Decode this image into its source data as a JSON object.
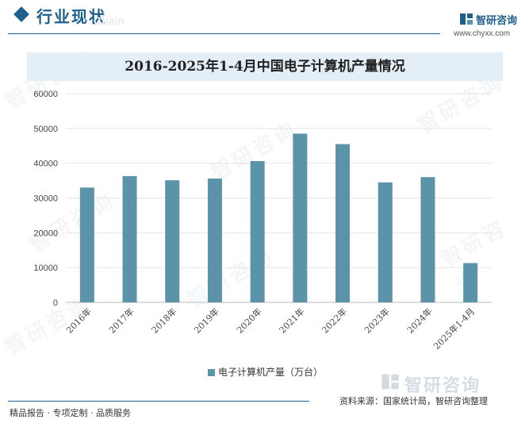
{
  "header": {
    "section_title": "行业现状",
    "section_title_en": "Chain",
    "brand_name": "智研咨询",
    "brand_url": "www.chyxx.com"
  },
  "watermark": {
    "text": "智研咨询"
  },
  "footer": {
    "left_text": "精品报告 · 专项定制 · 品质服务",
    "source_text": "资料来源：国家统计局，智研咨询整理",
    "brand_name": "智研咨询"
  },
  "colors": {
    "accent": "#1f5f8b",
    "bar": "#5b93a8",
    "title_bg": "#e3eef6"
  },
  "chart_data": {
    "type": "bar",
    "title": "2016-2025年1-4月中国电子计算机产量情况",
    "categories": [
      "2016年",
      "2017年",
      "2018年",
      "2019年",
      "2020年",
      "2021年",
      "2022年",
      "2023年",
      "2024年",
      "2025年1-4月"
    ],
    "series": [
      {
        "name": "电子计算机产量（万台）",
        "values": [
          33000,
          36300,
          35100,
          35600,
          40600,
          48500,
          45500,
          34500,
          36000,
          11300
        ]
      }
    ],
    "y_ticks": [
      0,
      10000,
      20000,
      30000,
      40000,
      50000,
      60000
    ],
    "ylim": [
      0,
      60000
    ],
    "xlabel": "",
    "ylabel": "",
    "grid": true,
    "legend_position": "bottom"
  }
}
